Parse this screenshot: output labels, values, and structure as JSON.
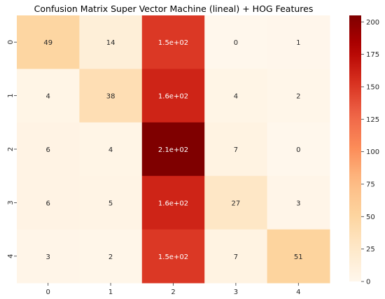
{
  "chart_data": {
    "type": "heatmap",
    "title": "Confusion Matrix Super Vector Machine (lineal) + HOG Features",
    "x_categories": [
      "0",
      "1",
      "2",
      "3",
      "4"
    ],
    "y_categories": [
      "0",
      "1",
      "2",
      "3",
      "4"
    ],
    "values": [
      [
        49,
        14,
        150,
        0,
        1
      ],
      [
        4,
        38,
        160,
        4,
        2
      ],
      [
        6,
        4,
        210,
        7,
        0
      ],
      [
        6,
        5,
        160,
        27,
        3
      ],
      [
        3,
        2,
        150,
        7,
        51
      ]
    ],
    "cell_labels": [
      [
        "49",
        "14",
        "1.5e+02",
        "0",
        "1"
      ],
      [
        "4",
        "38",
        "1.6e+02",
        "4",
        "2"
      ],
      [
        "6",
        "4",
        "2.1e+02",
        "7",
        "0"
      ],
      [
        "6",
        "5",
        "1.6e+02",
        "27",
        "3"
      ],
      [
        "3",
        "2",
        "1.5e+02",
        "7",
        "51"
      ]
    ],
    "colorbar": {
      "range": [
        0,
        205
      ],
      "ticks": [
        "0",
        "25",
        "50",
        "75",
        "100",
        "125",
        "150",
        "175",
        "200"
      ],
      "colormap": "OrRd"
    },
    "xlabel": "",
    "ylabel": ""
  }
}
